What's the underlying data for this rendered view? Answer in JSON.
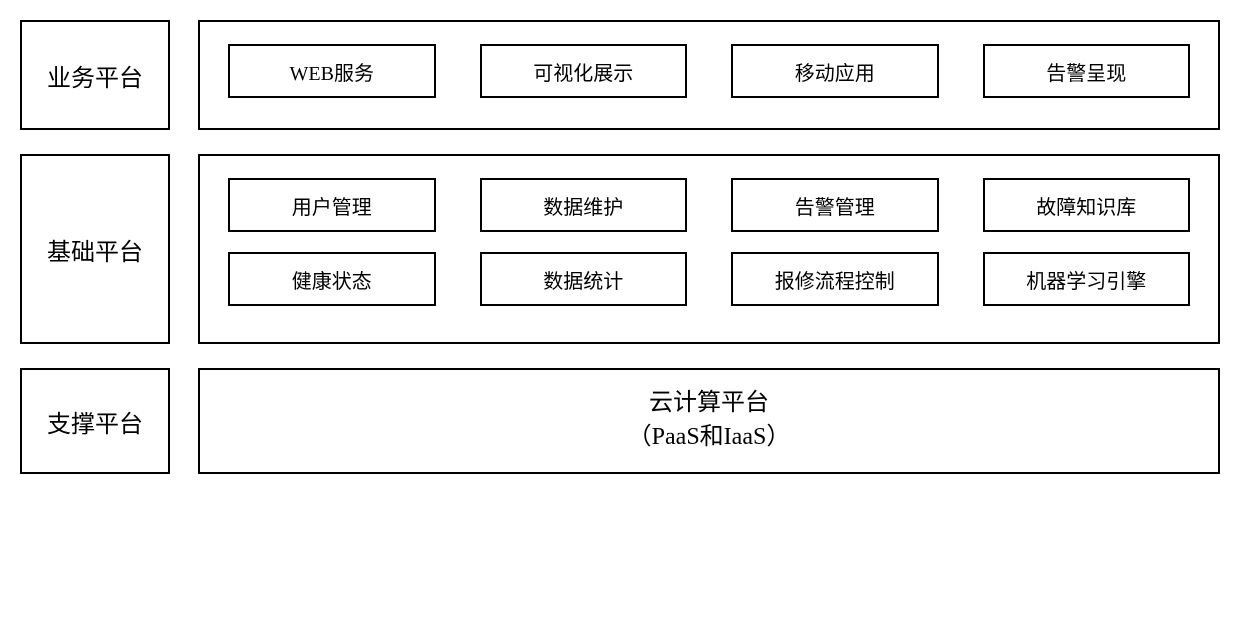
{
  "diagram": {
    "background_color": "#ffffff",
    "border_color": "#000000",
    "text_color": "#000000",
    "font_family": "SimSun",
    "label_fontsize": 24,
    "module_fontsize": 20,
    "layers": {
      "business": {
        "label": "业务平台",
        "rows": [
          {
            "modules": [
              "WEB服务",
              "可视化展示",
              "移动应用",
              "告警呈现"
            ]
          }
        ]
      },
      "basic": {
        "label": "基础平台",
        "rows": [
          {
            "modules": [
              "用户管理",
              "数据维护",
              "告警管理",
              "故障知识库"
            ]
          },
          {
            "modules": [
              "健康状态",
              "数据统计",
              "报修流程控制",
              "机器学习引擎"
            ]
          }
        ]
      },
      "support": {
        "label": "支撑平台",
        "cloud": {
          "title": "云计算平台",
          "subtitle": "（PaaS和IaaS）"
        }
      }
    }
  }
}
